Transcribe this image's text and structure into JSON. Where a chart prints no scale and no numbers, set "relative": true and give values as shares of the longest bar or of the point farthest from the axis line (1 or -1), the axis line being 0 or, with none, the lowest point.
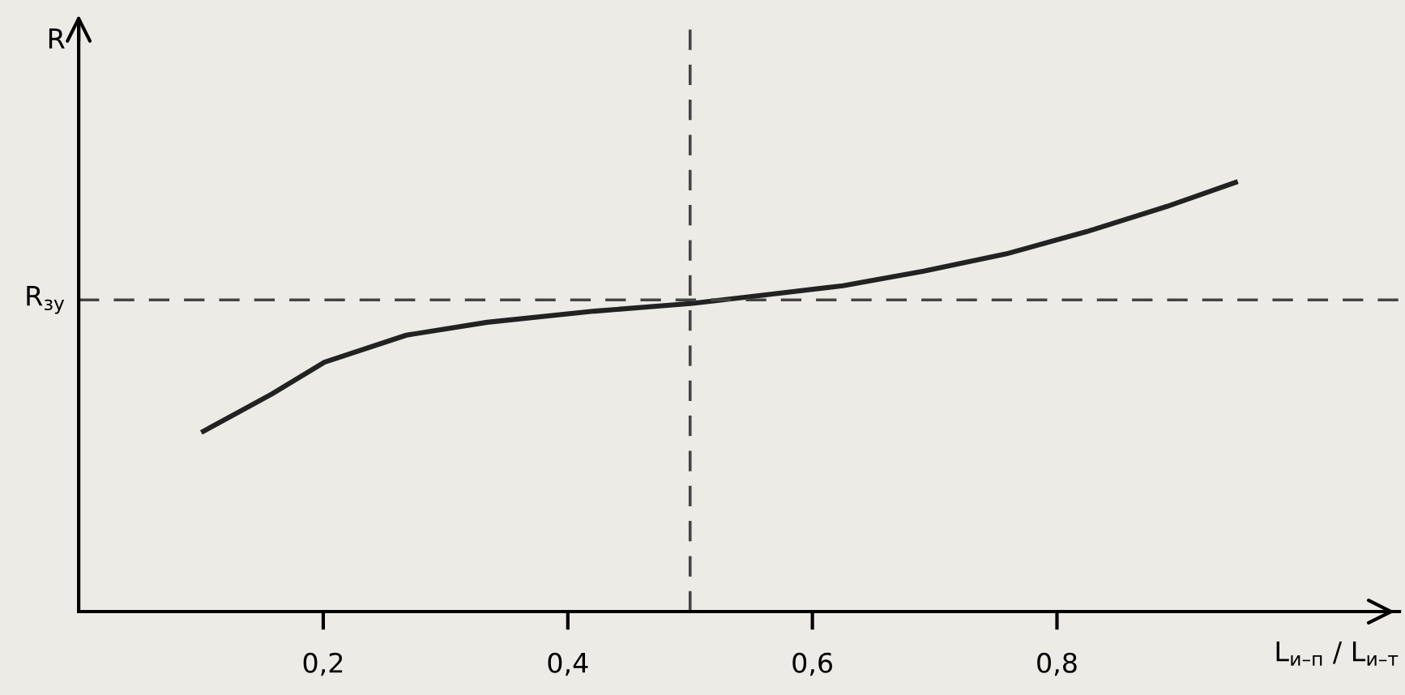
{
  "chart_data": {
    "type": "line",
    "relative": true,
    "ylabel": "R",
    "xlabel": "L$_{и–п}$ / L$_{и–т}$",
    "xlim": [
      0,
      1.08
    ],
    "xticks": [
      {
        "value": 0.2,
        "label": "0,2"
      },
      {
        "value": 0.4,
        "label": "0,4"
      },
      {
        "value": 0.6,
        "label": "0,6"
      },
      {
        "value": 0.8,
        "label": "0,8"
      }
    ],
    "series": [
      {
        "color": "#222222",
        "x": [
          0.102,
          0.158,
          0.201,
          0.268,
          0.334,
          0.422,
          0.502,
          0.559,
          0.625,
          0.691,
          0.758,
          0.824,
          0.89,
          0.946
        ],
        "values": [
          0.42,
          0.507,
          0.581,
          0.644,
          0.674,
          0.7,
          0.718,
          0.737,
          0.759,
          0.793,
          0.833,
          0.885,
          0.944,
          1
        ]
      }
    ],
    "ref_lines": [
      {
        "axis": "y",
        "value": 0.726,
        "label": "R$_{зу}$",
        "line_style": "dashed",
        "color": "#444444"
      },
      {
        "axis": "x",
        "value": 0.5,
        "label": null,
        "line_style": "dashed",
        "color": "#444444"
      }
    ],
    "grid": false,
    "legend": false,
    "marker": "none",
    "line_style": "solid"
  }
}
